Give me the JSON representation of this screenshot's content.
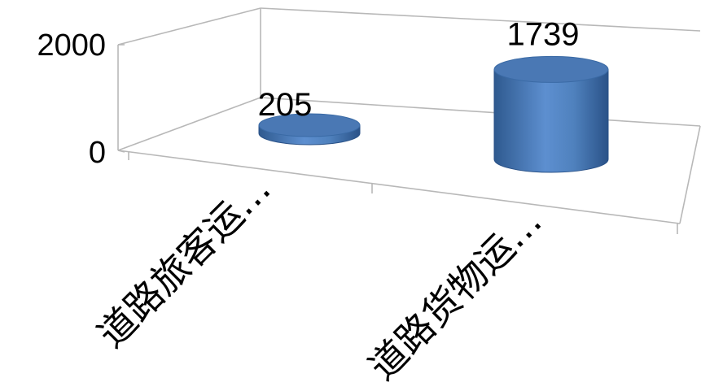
{
  "chart_data": {
    "type": "bar",
    "style": "3d-cylinder",
    "categories": [
      "道路旅客运…",
      "道路货物运…"
    ],
    "values": [
      205,
      1739
    ],
    "data_labels": [
      "205",
      "1739"
    ],
    "yticks": [
      0,
      2000
    ],
    "ytick_labels": [
      "0",
      "2000"
    ],
    "ylim": [
      0,
      2000
    ],
    "title": "",
    "xlabel": "",
    "ylabel": "",
    "grid": false,
    "legend": "none",
    "colors": {
      "bar": "#4f81bd",
      "bar_light": "#7fa7d9",
      "bar_dark": "#2f5a8f",
      "top": "#4a78b4",
      "frame": "#b8b8b8"
    }
  }
}
